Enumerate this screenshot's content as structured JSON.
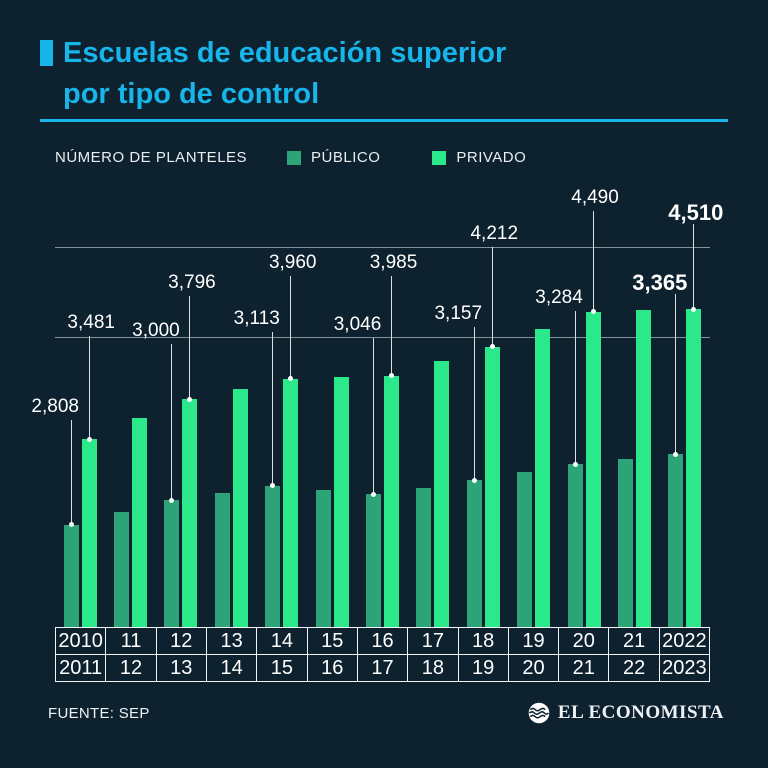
{
  "header": {
    "title_line1": "Escuelas de educación superior",
    "title_line2": "por tipo de control",
    "accent_color": "#17b5ea"
  },
  "legend": {
    "axis_label": "NÚMERO DE PLANTELES",
    "series": [
      {
        "name": "PÚBLICO",
        "color": "#2ca477"
      },
      {
        "name": "PRIVADO",
        "color": "#2be98b"
      }
    ]
  },
  "chart_data": {
    "type": "bar",
    "title": "Escuelas de educación superior por tipo de control",
    "ylabel": "NÚMERO DE PLANTELES",
    "categories": [
      "2010-2011",
      "2011-2012",
      "2012-2013",
      "2013-2014",
      "2014-2015",
      "2015-2016",
      "2016-2017",
      "2017-2018",
      "2018-2019",
      "2019-2020",
      "2020-2021",
      "2021-2022",
      "2022-2023"
    ],
    "x_row_top": [
      "2010",
      "11",
      "12",
      "13",
      "14",
      "15",
      "16",
      "17",
      "18",
      "19",
      "20",
      "21",
      "2022"
    ],
    "x_row_bottom": [
      "2011",
      "12",
      "13",
      "14",
      "15",
      "16",
      "17",
      "18",
      "19",
      "20",
      "21",
      "22",
      "2023"
    ],
    "series": [
      {
        "name": "PÚBLICO",
        "color": "#2ca477",
        "values": [
          2808,
          2905,
          3000,
          3055,
          3113,
          3080,
          3046,
          3100,
          3157,
          3220,
          3284,
          3325,
          3365
        ]
      },
      {
        "name": "PRIVADO",
        "color": "#2be98b",
        "values": [
          3481,
          3650,
          3796,
          3880,
          3960,
          3975,
          3985,
          4100,
          4212,
          4350,
          4490,
          4500,
          4510
        ]
      }
    ],
    "labeled_year_indices": [
      0,
      2,
      4,
      6,
      8,
      10,
      12
    ],
    "emphasis_year_index": 12,
    "ylim": [
      2000,
      4510
    ],
    "legend_position": "top",
    "gridlines_unlabeled": true,
    "unlabeled_values_estimated": true
  },
  "footer": {
    "source": "FUENTE: SEP",
    "brand": "EL ECONOMISTA"
  }
}
